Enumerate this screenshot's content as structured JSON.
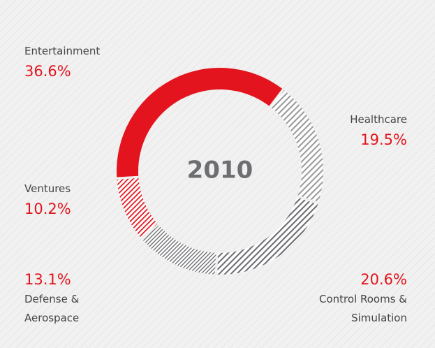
{
  "chart_data": {
    "type": "pie",
    "title": "2010",
    "categories": [
      "Entertainment",
      "Healthcare",
      "Control Rooms & Simulation",
      "Defense & Aerospace",
      "Ventures"
    ],
    "values": [
      36.6,
      19.5,
      20.6,
      13.1,
      10.2
    ],
    "value_labels": [
      "36.6%",
      "19.5%",
      "20.6%",
      "13.1%",
      "10.2%"
    ],
    "colors": [
      "#e3141d",
      "#9a9b9d",
      "#6d6e71",
      "#6d6e71",
      "#e3141d"
    ],
    "hatched": [
      false,
      true,
      true,
      true,
      true
    ]
  }
}
